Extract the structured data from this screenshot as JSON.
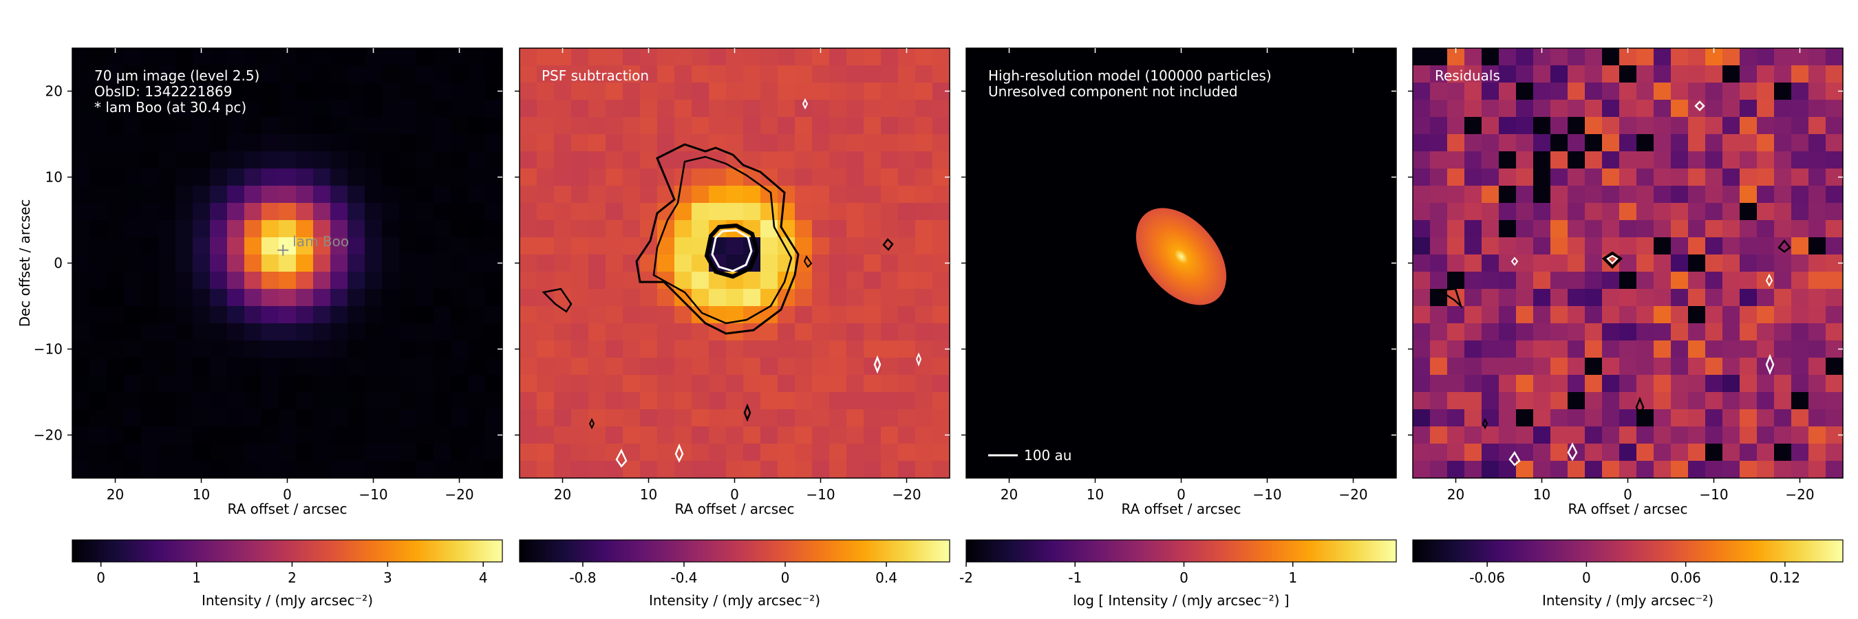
{
  "chart_data": [
    {
      "type": "heatmap",
      "x_range": [
        25,
        -25
      ],
      "y_range": [
        -25,
        25
      ],
      "xlabel": "RA offset / arcsec",
      "ylabel": "Dec offset / arcsec",
      "x_ticks": [
        20,
        10,
        0,
        -10,
        -20
      ],
      "x_tick_labels": [
        "20",
        "10",
        "0",
        "−10",
        "−20"
      ],
      "y_ticks": [
        20,
        10,
        0,
        -10,
        -20
      ],
      "y_tick_labels": [
        "20",
        "10",
        "0",
        "−10",
        "−20"
      ],
      "annotation_lines": [
        "70 µm image (level 2.5)",
        "ObsID: 1342221869",
        "* lam Boo (at 30.4 pc)"
      ],
      "marker": {
        "x": 0.5,
        "y": 1.5,
        "label": "lam Boo"
      },
      "colormap": "inferno",
      "colorbar": {
        "range": [
          -0.3,
          4.2
        ],
        "ticks": [
          0,
          1,
          2,
          3,
          4
        ],
        "tick_labels": [
          "0",
          "1",
          "2",
          "3",
          "4"
        ],
        "label": "Intensity / (mJy arcsec⁻²)"
      },
      "peak_intensity": 4.2
    },
    {
      "type": "heatmap",
      "x_range": [
        25,
        -25
      ],
      "y_range": [
        -25,
        25
      ],
      "xlabel": "RA offset / arcsec",
      "x_ticks": [
        20,
        10,
        0,
        -10,
        -20
      ],
      "x_tick_labels": [
        "20",
        "10",
        "0",
        "−10",
        "−20"
      ],
      "annotation_lines": [
        "PSF subtraction"
      ],
      "contours": "black and white significance contours around the central ring",
      "colormap": "inferno",
      "colorbar": {
        "range": [
          -1.05,
          0.65
        ],
        "ticks": [
          -0.8,
          -0.4,
          0,
          0.4
        ],
        "tick_labels": [
          "-0.8",
          "-0.4",
          "0",
          "0.4"
        ],
        "label": "Intensity / (mJy arcsec⁻²)"
      }
    },
    {
      "type": "heatmap",
      "x_range": [
        25,
        -25
      ],
      "y_range": [
        -25,
        25
      ],
      "xlabel": "RA offset / arcsec",
      "x_ticks": [
        20,
        10,
        0,
        -10,
        -20
      ],
      "x_tick_labels": [
        "20",
        "10",
        "0",
        "−10",
        "−20"
      ],
      "annotation_lines": [
        "High-resolution model (100000 particles)",
        "Unresolved component not included"
      ],
      "scale_bar_label": "100 au",
      "disc": {
        "center": [
          0,
          0.5
        ],
        "semi_major": 6.5,
        "semi_minor": 4.2,
        "position_angle_deg": 50
      },
      "colormap": "inferno",
      "colorbar": {
        "range": [
          -2,
          1.95
        ],
        "ticks": [
          -2,
          -1,
          0,
          1
        ],
        "tick_labels": [
          "-2",
          "-1",
          "0",
          "1"
        ],
        "label": "log [ Intensity / (mJy arcsec⁻²) ]"
      }
    },
    {
      "type": "heatmap",
      "x_range": [
        25,
        -25
      ],
      "y_range": [
        -25,
        25
      ],
      "xlabel": "RA offset / arcsec",
      "x_ticks": [
        20,
        10,
        0,
        -10,
        -20
      ],
      "x_tick_labels": [
        "20",
        "10",
        "0",
        "−10",
        "−20"
      ],
      "annotation_lines": [
        "Residuals"
      ],
      "colormap": "inferno",
      "colorbar": {
        "range": [
          -0.105,
          0.155
        ],
        "ticks": [
          -0.06,
          0,
          0.06,
          0.12
        ],
        "tick_labels": [
          "-0.06",
          "0",
          "0.06",
          "0.12"
        ],
        "label": "Intensity / (mJy arcsec⁻²)"
      }
    }
  ],
  "colors": {
    "inferno": [
      "#000004",
      "#160b39",
      "#420a68",
      "#6a176e",
      "#932667",
      "#bc3754",
      "#dd513a",
      "#f37819",
      "#fca50a",
      "#f6d746",
      "#fcffa4"
    ],
    "contour_dark": "#000000",
    "contour_light": "#ffffff",
    "annotation_text": "#ffffff",
    "marker": "#8a8a8a"
  }
}
